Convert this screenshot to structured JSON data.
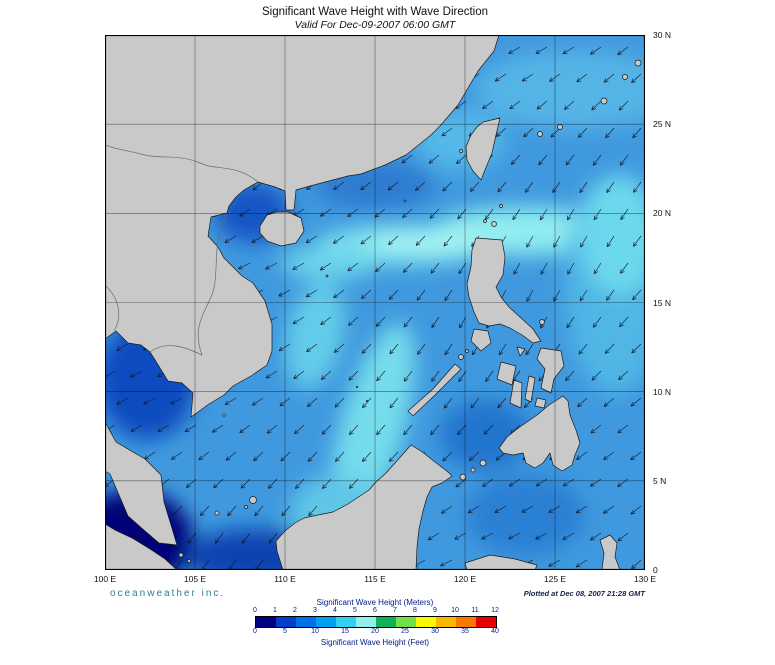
{
  "header": {
    "title": "Significant Wave Height with Wave Direction",
    "subtitle": "Valid For Dec-09-2007 06:00 GMT"
  },
  "axes": {
    "lon": [
      "100 E",
      "105 E",
      "110 E",
      "115 E",
      "120 E",
      "125 E",
      "130 E"
    ],
    "lat": [
      "30 N",
      "25 N",
      "20 N",
      "15 N",
      "10 N",
      "5 N",
      "0"
    ]
  },
  "map_meta": {
    "lon_range_deg": [
      100,
      130
    ],
    "lat_range_deg": [
      0,
      30
    ],
    "wave_direction": "southwest (arrows point toward lower-left)",
    "arrow_spacing": 27,
    "arrow_length": 13,
    "base_angle_deg": 223,
    "angle_variation_deg": 12
  },
  "legend": {
    "meters_label": "Significant Wave Height (Meters)",
    "feet_label": "Significant Wave Height (Feet)",
    "meters_ticks": [
      "0",
      "1",
      "2",
      "3",
      "4",
      "5",
      "6",
      "7",
      "8",
      "9",
      "10",
      "11",
      "12"
    ],
    "feet_ticks": [
      "0",
      "5",
      "10",
      "15",
      "20",
      "25",
      "30",
      "35",
      "40"
    ],
    "colors": [
      "#000080",
      "#0040c8",
      "#0070e8",
      "#00a0f0",
      "#30d0f0",
      "#90f0ee",
      "#10b058",
      "#70e048",
      "#f8f800",
      "#f8b800",
      "#f87800",
      "#e80000"
    ]
  },
  "footer": {
    "branding": "oceanweather inc.",
    "plotted": "Plotted at Dec 08, 2007 21:28 GMT"
  }
}
